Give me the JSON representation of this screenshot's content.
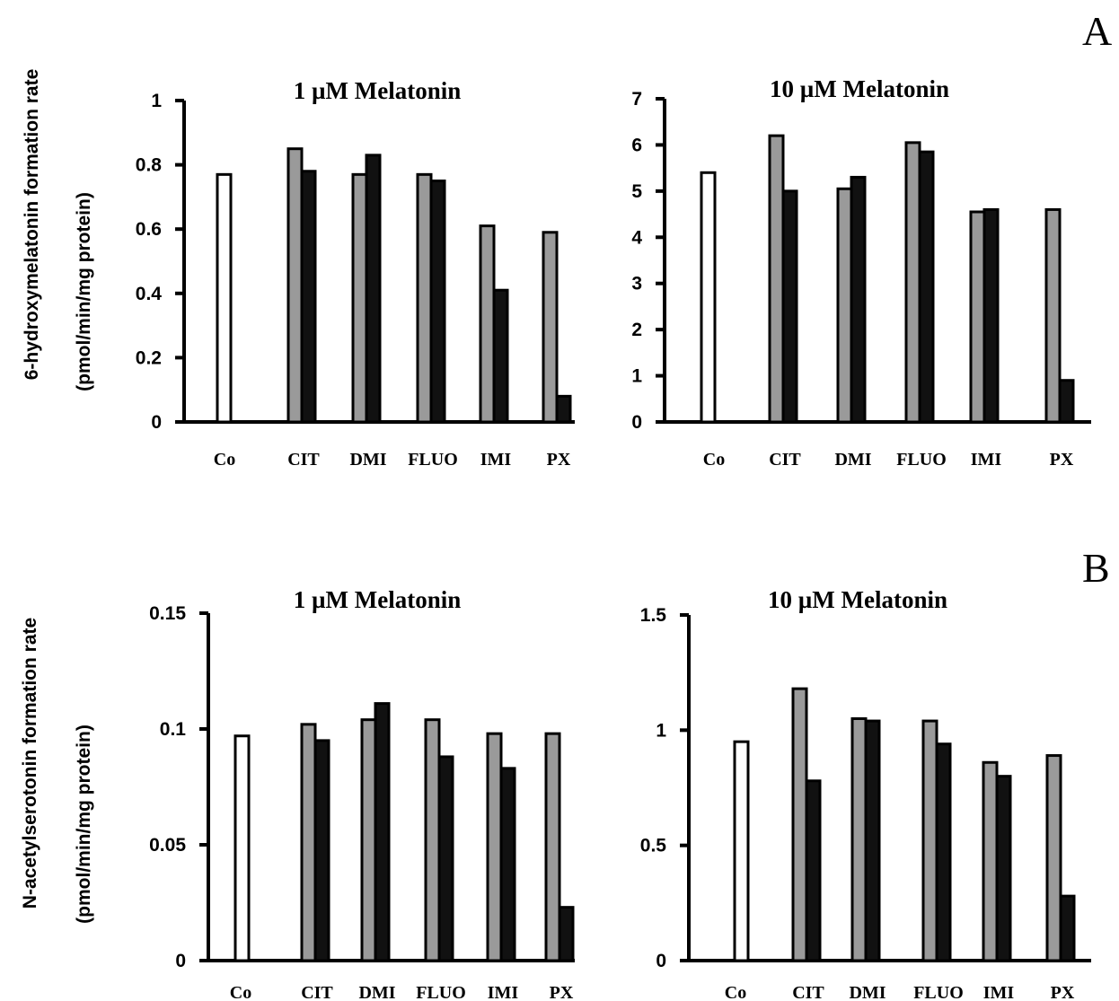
{
  "panels": [
    {
      "letter": "A",
      "ylabel_line1": "6-hydroxymelatonin formation rate",
      "ylabel_line2": "(pmol/min/mg protein)"
    },
    {
      "letter": "B",
      "ylabel_line1": "N-acetylserotonin formation rate",
      "ylabel_line2": "(pmol/min/mg protein)"
    }
  ],
  "colors": {
    "control": "#ffffff",
    "series_gray": "#9a9a9a",
    "series_black": "#111111",
    "outline": "#000000"
  },
  "chart_data": [
    {
      "type": "bar",
      "panel": "A",
      "title": "1 µM Melatonin",
      "categories": [
        "Co",
        "CIT",
        "DMI",
        "FLUO",
        "IMI",
        "PX"
      ],
      "ylim": [
        0,
        1
      ],
      "yticks": [
        0,
        0.2,
        0.4,
        0.6,
        0.8,
        1
      ],
      "ytick_labels": [
        "0",
        "0.2",
        "0.4",
        "0.6",
        "0.8",
        "1"
      ],
      "control": 0.77,
      "series": [
        {
          "values": [
            null,
            0.85,
            0.77,
            0.77,
            0.61,
            0.59
          ]
        },
        {
          "values": [
            null,
            0.78,
            0.83,
            0.75,
            0.41,
            0.08
          ]
        }
      ]
    },
    {
      "type": "bar",
      "panel": "A",
      "title": "10 µM Melatonin",
      "categories": [
        "Co",
        "CIT",
        "DMI",
        "FLUO",
        "IMI",
        "PX"
      ],
      "ylim": [
        0,
        7
      ],
      "yticks": [
        0,
        1,
        2,
        3,
        4,
        5,
        6,
        7
      ],
      "ytick_labels": [
        "0",
        "1",
        "2",
        "3",
        "4",
        "5",
        "6",
        "7"
      ],
      "control": 5.4,
      "series": [
        {
          "values": [
            null,
            6.2,
            5.05,
            6.05,
            4.55,
            4.6
          ]
        },
        {
          "values": [
            null,
            5.0,
            5.3,
            5.85,
            4.6,
            0.9
          ]
        }
      ]
    },
    {
      "type": "bar",
      "panel": "B",
      "title": "1 µM Melatonin",
      "categories": [
        "Co",
        "CIT",
        "DMI",
        "FLUO",
        "IMI",
        "PX"
      ],
      "ylim": [
        0,
        0.15
      ],
      "yticks": [
        0,
        0.05,
        0.1,
        0.15
      ],
      "ytick_labels": [
        "0",
        "0.05",
        "0.1",
        "0.15"
      ],
      "control": 0.097,
      "series": [
        {
          "values": [
            null,
            0.102,
            0.104,
            0.104,
            0.098,
            0.098
          ]
        },
        {
          "values": [
            null,
            0.095,
            0.111,
            0.088,
            0.083,
            0.023
          ]
        }
      ]
    },
    {
      "type": "bar",
      "panel": "B",
      "title": "10 µM Melatonin",
      "categories": [
        "Co",
        "CIT",
        "DMI",
        "FLUO",
        "IMI",
        "PX"
      ],
      "ylim": [
        0,
        1.5
      ],
      "yticks": [
        0,
        0.5,
        1,
        1.5
      ],
      "ytick_labels": [
        "0",
        "0.5",
        "1",
        "1.5"
      ],
      "control": 0.95,
      "series": [
        {
          "values": [
            null,
            1.18,
            1.05,
            1.04,
            0.86,
            0.89
          ]
        },
        {
          "values": [
            null,
            0.78,
            1.04,
            0.94,
            0.8,
            0.28
          ]
        }
      ]
    }
  ]
}
